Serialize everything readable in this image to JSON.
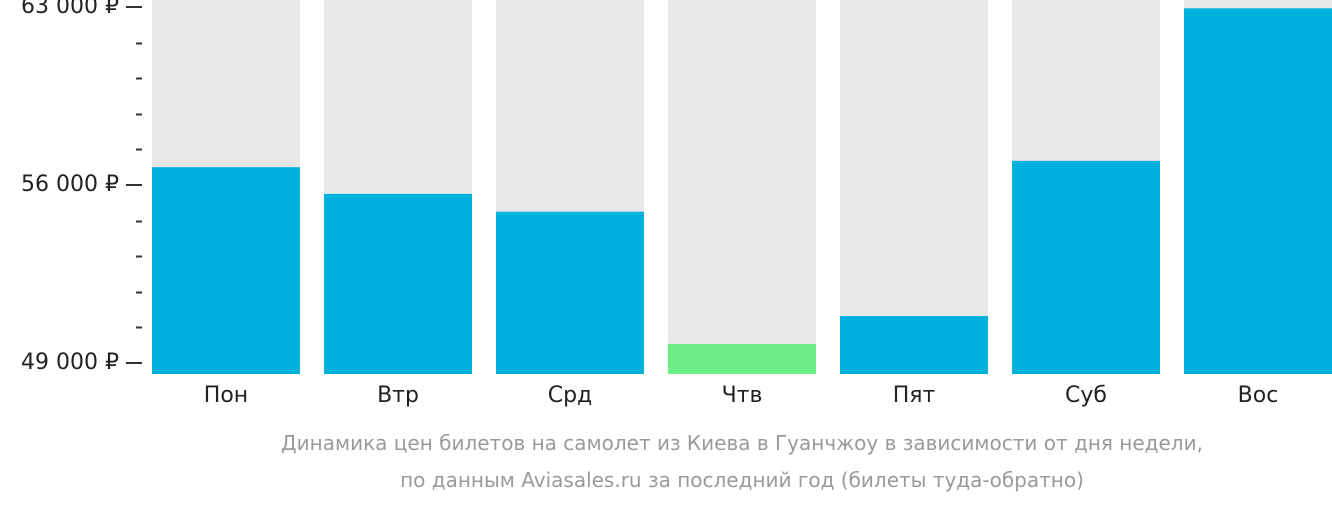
{
  "chart_data": {
    "type": "bar",
    "categories": [
      "Пон",
      "Втр",
      "Срд",
      "Чтв",
      "Пят",
      "Суб",
      "Вос"
    ],
    "values": [
      56700,
      55650,
      54950,
      49750,
      50850,
      56950,
      62950
    ],
    "highlight_index": 3,
    "ylim": [
      49000,
      63000
    ],
    "y_ticks": [
      {
        "value": 63000,
        "label": "63 000 ₽"
      },
      {
        "value": 56000,
        "label": "56 000 ₽"
      },
      {
        "value": 49000,
        "label": "49 000 ₽"
      }
    ],
    "y_minor_step": 1400,
    "colors": {
      "bar": "#00b0dd",
      "highlight": "#6ded86",
      "track": "#e8e8e8",
      "axis": "#333333",
      "label": "#222222",
      "caption": "#9a9a9a"
    },
    "caption": [
      "Динамика цен билетов на самолет из Киева в Гуанчжоу в зависимости от дня недели,",
      "по данным Aviasales.ru за последний год (билеты туда-обратно)"
    ],
    "grid": false,
    "legend": "none"
  }
}
